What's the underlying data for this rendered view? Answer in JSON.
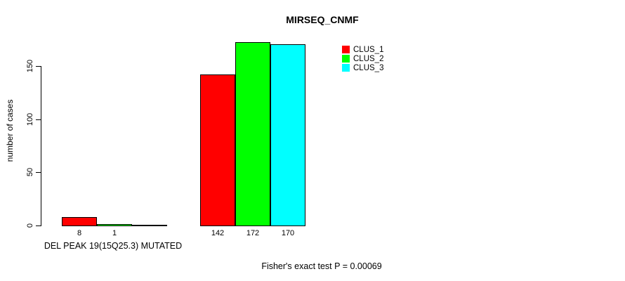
{
  "chart_data": {
    "type": "bar",
    "title": "MIRSEQ_CNMF",
    "xlabel": "DEL PEAK 19(15Q25.3) MUTATED",
    "ylabel": "number of cases",
    "yticks": [
      0,
      50,
      100,
      150
    ],
    "ylim": [
      0,
      175
    ],
    "grid": false,
    "legend_position": "top-right",
    "series_names": [
      "CLUS_1",
      "CLUS_2",
      "CLUS_3"
    ],
    "colors": [
      "#FF0000",
      "#00FF00",
      "#00FFFF"
    ],
    "groups": [
      {
        "values": [
          8,
          1,
          0
        ],
        "labels": [
          "8",
          "1",
          ""
        ]
      },
      {
        "values": [
          142,
          172,
          170
        ],
        "labels": [
          "142",
          "172",
          "170"
        ]
      }
    ],
    "legend": {
      "entries": [
        {
          "label": "CLUS_1",
          "color": "#FF0000"
        },
        {
          "label": "CLUS_2",
          "color": "#00FF00"
        },
        {
          "label": "CLUS_3",
          "color": "#00FFFF"
        }
      ]
    },
    "annotation": "Fisher's exact test P = 0.00069"
  }
}
